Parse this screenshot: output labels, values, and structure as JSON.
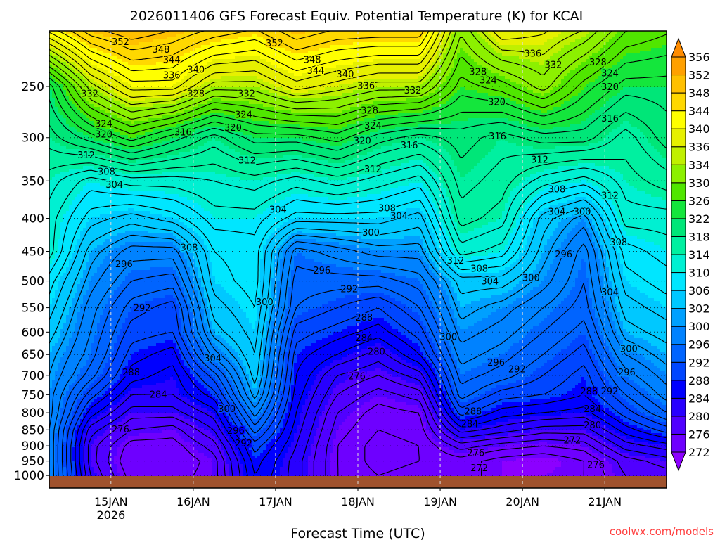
{
  "chart_data": {
    "type": "heatmap",
    "subtype": "filled-contour time-height cross section",
    "title": "2026011406 GFS Forecast Equiv. Potential Temperature (K) for KCAI",
    "xlabel": "Forecast Time (UTC)",
    "ylabel": "",
    "watermark": "coolwx.com/models",
    "x_unit": "forecast hour from 2026-01-14 06Z",
    "xlim": [
      0,
      180
    ],
    "x_ticks": [
      {
        "hour": 18,
        "label": "15JAN",
        "sublabel": "2026"
      },
      {
        "hour": 42,
        "label": "16JAN"
      },
      {
        "hour": 66,
        "label": "17JAN"
      },
      {
        "hour": 90,
        "label": "18JAN"
      },
      {
        "hour": 114,
        "label": "19JAN"
      },
      {
        "hour": 138,
        "label": "20JAN"
      },
      {
        "hour": 162,
        "label": "21JAN"
      }
    ],
    "y_unit": "hPa",
    "ylim": [
      1046,
      205
    ],
    "y_scale": "log",
    "y_ticks": [
      250,
      300,
      350,
      400,
      450,
      500,
      550,
      600,
      650,
      700,
      750,
      800,
      850,
      900,
      950,
      1000
    ],
    "grid": true,
    "forecast_hours": [
      0,
      12,
      24,
      36,
      48,
      60,
      72,
      84,
      96,
      108,
      120,
      132,
      144,
      156,
      168,
      180
    ],
    "pressure_levels": [
      200,
      250,
      300,
      350,
      400,
      450,
      500,
      550,
      600,
      650,
      700,
      750,
      800,
      850,
      900,
      950,
      1000
    ],
    "values_by_time": [
      [
        344,
        322,
        318,
        314,
        312,
        312,
        308,
        306,
        304,
        302,
        301,
        300,
        300,
        299,
        299,
        299,
        299
      ],
      [
        350,
        334,
        322,
        310,
        306,
        302,
        300,
        298,
        297,
        296,
        294,
        290,
        286,
        282,
        280,
        280,
        281
      ],
      [
        352,
        340,
        326,
        312,
        304,
        298,
        295,
        292,
        290,
        288,
        286,
        283,
        280,
        277,
        274,
        273,
        274
      ],
      [
        350,
        340,
        322,
        312,
        306,
        298,
        294,
        290,
        289,
        286,
        284,
        283,
        280,
        276,
        274,
        273,
        274
      ],
      [
        348,
        334,
        318,
        313,
        310,
        307,
        306,
        304,
        302,
        298,
        292,
        288,
        284,
        281,
        278,
        276,
        276
      ],
      [
        346,
        334,
        322,
        314,
        310,
        308,
        308,
        307,
        306,
        305,
        304,
        302,
        298,
        294,
        290,
        288,
        287
      ],
      [
        350,
        338,
        322,
        312,
        306,
        296,
        294,
        293,
        290,
        288,
        287,
        286,
        285,
        284,
        283,
        282,
        282
      ],
      [
        348,
        336,
        324,
        314,
        306,
        298,
        294,
        291,
        288,
        285,
        281,
        279,
        277,
        276,
        275,
        275,
        275
      ],
      [
        348,
        334,
        320,
        312,
        306,
        300,
        294,
        289,
        286,
        282,
        279,
        276,
        274,
        273,
        272,
        272,
        273
      ],
      [
        348,
        334,
        318,
        310,
        304,
        300,
        296,
        293,
        290,
        287,
        282,
        278,
        275,
        274,
        273,
        273,
        274
      ],
      [
        332,
        326,
        320,
        318,
        316,
        312,
        304,
        302,
        300,
        298,
        296,
        294,
        290,
        284,
        278,
        274,
        274
      ],
      [
        340,
        328,
        318,
        316,
        314,
        310,
        304,
        300,
        298,
        296,
        294,
        290,
        286,
        282,
        276,
        272,
        272
      ],
      [
        338,
        332,
        320,
        312,
        304,
        302,
        300,
        297,
        295,
        293,
        291,
        289,
        285,
        280,
        275,
        271,
        272
      ],
      [
        336,
        326,
        320,
        310,
        300,
        296,
        295,
        294,
        292,
        290,
        288,
        287,
        284,
        280,
        276,
        273,
        273
      ],
      [
        330,
        322,
        316,
        314,
        312,
        308,
        306,
        304,
        302,
        299,
        296,
        293,
        290,
        286,
        282,
        278,
        277
      ],
      [
        328,
        322,
        320,
        316,
        312,
        310,
        308,
        306,
        304,
        302,
        300,
        298,
        295,
        290,
        284,
        280,
        278
      ]
    ],
    "contour_interval": 2,
    "contour_labels": [
      {
        "v": "352",
        "h": 20.8,
        "p": 213
      },
      {
        "v": "348",
        "h": 32.6,
        "p": 219
      },
      {
        "v": "344",
        "h": 35.7,
        "p": 227
      },
      {
        "v": "340",
        "h": 42.8,
        "p": 235
      },
      {
        "v": "336",
        "h": 35.7,
        "p": 240
      },
      {
        "v": "332",
        "h": 11.8,
        "p": 256
      },
      {
        "v": "328",
        "h": 42.8,
        "p": 256
      },
      {
        "v": "332",
        "h": 57.5,
        "p": 256
      },
      {
        "v": "324",
        "h": 15.9,
        "p": 285
      },
      {
        "v": "320",
        "h": 15.9,
        "p": 296
      },
      {
        "v": "316",
        "h": 39,
        "p": 294
      },
      {
        "v": "324",
        "h": 56.7,
        "p": 276
      },
      {
        "v": "320",
        "h": 53.6,
        "p": 289
      },
      {
        "v": "312",
        "h": 10.8,
        "p": 319
      },
      {
        "v": "308",
        "h": 16.7,
        "p": 338
      },
      {
        "v": "304",
        "h": 19,
        "p": 354
      },
      {
        "v": "312",
        "h": 57.7,
        "p": 325
      },
      {
        "v": "352",
        "h": 65.7,
        "p": 214
      },
      {
        "v": "348",
        "h": 76.7,
        "p": 227
      },
      {
        "v": "344",
        "h": 77.7,
        "p": 236
      },
      {
        "v": "340",
        "h": 86.3,
        "p": 239
      },
      {
        "v": "336",
        "h": 92.4,
        "p": 249
      },
      {
        "v": "332",
        "h": 106,
        "p": 253
      },
      {
        "v": "328",
        "h": 93.4,
        "p": 272
      },
      {
        "v": "324",
        "h": 94.4,
        "p": 287
      },
      {
        "v": "320",
        "h": 91.3,
        "p": 303
      },
      {
        "v": "316",
        "h": 105,
        "p": 308
      },
      {
        "v": "312",
        "h": 94.4,
        "p": 335
      },
      {
        "v": "308",
        "h": 98.5,
        "p": 385
      },
      {
        "v": "304",
        "h": 102,
        "p": 396
      },
      {
        "v": "304",
        "h": 66.7,
        "p": 387
      },
      {
        "v": "308",
        "h": 40.8,
        "p": 443
      },
      {
        "v": "296",
        "h": 21.8,
        "p": 470
      },
      {
        "v": "292",
        "h": 27.1,
        "p": 550
      },
      {
        "v": "288",
        "h": 23.9,
        "p": 692
      },
      {
        "v": "284",
        "h": 31.8,
        "p": 748
      },
      {
        "v": "276",
        "h": 20.8,
        "p": 847
      },
      {
        "v": "300",
        "h": 62.8,
        "p": 538
      },
      {
        "v": "304",
        "h": 47.7,
        "p": 658
      },
      {
        "v": "300",
        "h": 51.8,
        "p": 788
      },
      {
        "v": "296",
        "h": 54.4,
        "p": 851
      },
      {
        "v": "292",
        "h": 56.7,
        "p": 891
      },
      {
        "v": "296",
        "h": 79.5,
        "p": 481
      },
      {
        "v": "292",
        "h": 87.5,
        "p": 514
      },
      {
        "v": "300",
        "h": 93.8,
        "p": 420
      },
      {
        "v": "288",
        "h": 91.8,
        "p": 569
      },
      {
        "v": "284",
        "h": 91.8,
        "p": 612
      },
      {
        "v": "280",
        "h": 95.4,
        "p": 642
      },
      {
        "v": "276",
        "h": 89.7,
        "p": 701
      },
      {
        "v": "336",
        "h": 141,
        "p": 222
      },
      {
        "v": "332",
        "h": 147,
        "p": 231
      },
      {
        "v": "328",
        "h": 125,
        "p": 237
      },
      {
        "v": "324",
        "h": 128,
        "p": 244
      },
      {
        "v": "320",
        "h": 130.5,
        "p": 264
      },
      {
        "v": "316",
        "h": 130.7,
        "p": 298
      },
      {
        "v": "312",
        "h": 143,
        "p": 324
      },
      {
        "v": "308",
        "h": 148,
        "p": 360
      },
      {
        "v": "304",
        "h": 148,
        "p": 390
      },
      {
        "v": "300",
        "h": 155.4,
        "p": 390
      },
      {
        "v": "328",
        "h": 160,
        "p": 229
      },
      {
        "v": "324",
        "h": 163.5,
        "p": 238
      },
      {
        "v": "320",
        "h": 163.5,
        "p": 250
      },
      {
        "v": "316",
        "h": 163.5,
        "p": 280
      },
      {
        "v": "312",
        "h": 163.5,
        "p": 368
      },
      {
        "v": "308",
        "h": 166,
        "p": 435
      },
      {
        "v": "304",
        "h": 163.5,
        "p": 520
      },
      {
        "v": "300",
        "h": 169,
        "p": 636
      },
      {
        "v": "296",
        "h": 168.4,
        "p": 692
      },
      {
        "v": "312",
        "h": 118.5,
        "p": 464
      },
      {
        "v": "308",
        "h": 125.4,
        "p": 478
      },
      {
        "v": "304",
        "h": 128.5,
        "p": 500
      },
      {
        "v": "300",
        "h": 140.5,
        "p": 494
      },
      {
        "v": "296",
        "h": 150,
        "p": 454
      },
      {
        "v": "300",
        "h": 116.4,
        "p": 609
      },
      {
        "v": "296",
        "h": 130.3,
        "p": 668
      },
      {
        "v": "292",
        "h": 136.4,
        "p": 684
      },
      {
        "v": "288",
        "h": 123.6,
        "p": 795
      },
      {
        "v": "284",
        "h": 122.6,
        "p": 831
      },
      {
        "v": "276",
        "h": 124.4,
        "p": 921
      },
      {
        "v": "272",
        "h": 125.4,
        "p": 972
      },
      {
        "v": "288",
        "h": 157.4,
        "p": 740
      },
      {
        "v": "292",
        "h": 163.4,
        "p": 740
      },
      {
        "v": "284",
        "h": 158.4,
        "p": 788
      },
      {
        "v": "280",
        "h": 158.4,
        "p": 835
      },
      {
        "v": "272",
        "h": 152.5,
        "p": 881
      },
      {
        "v": "276",
        "h": 159.4,
        "p": 961
      }
    ],
    "colorbar": {
      "labels": [
        "272",
        "276",
        "280",
        "284",
        "288",
        "292",
        "296",
        "300",
        "302",
        "306",
        "310",
        "314",
        "318",
        "322",
        "326",
        "330",
        "334",
        "336",
        "340",
        "344",
        "348",
        "352",
        "356"
      ],
      "colors": [
        "#8c00ff",
        "#6e00ff",
        "#5000ff",
        "#2800ff",
        "#0000ff",
        "#0046ff",
        "#0064ff",
        "#0082ff",
        "#00a0ff",
        "#00c8ff",
        "#00e6ff",
        "#00f0d2",
        "#00f0a0",
        "#00e678",
        "#14e63c",
        "#50e600",
        "#8cf000",
        "#c0f000",
        "#e6f000",
        "#ffff00",
        "#ffd800",
        "#ffc000",
        "#ffa000",
        "#ff8c00"
      ],
      "placement": "right"
    },
    "ground_color": "#a0522d"
  }
}
